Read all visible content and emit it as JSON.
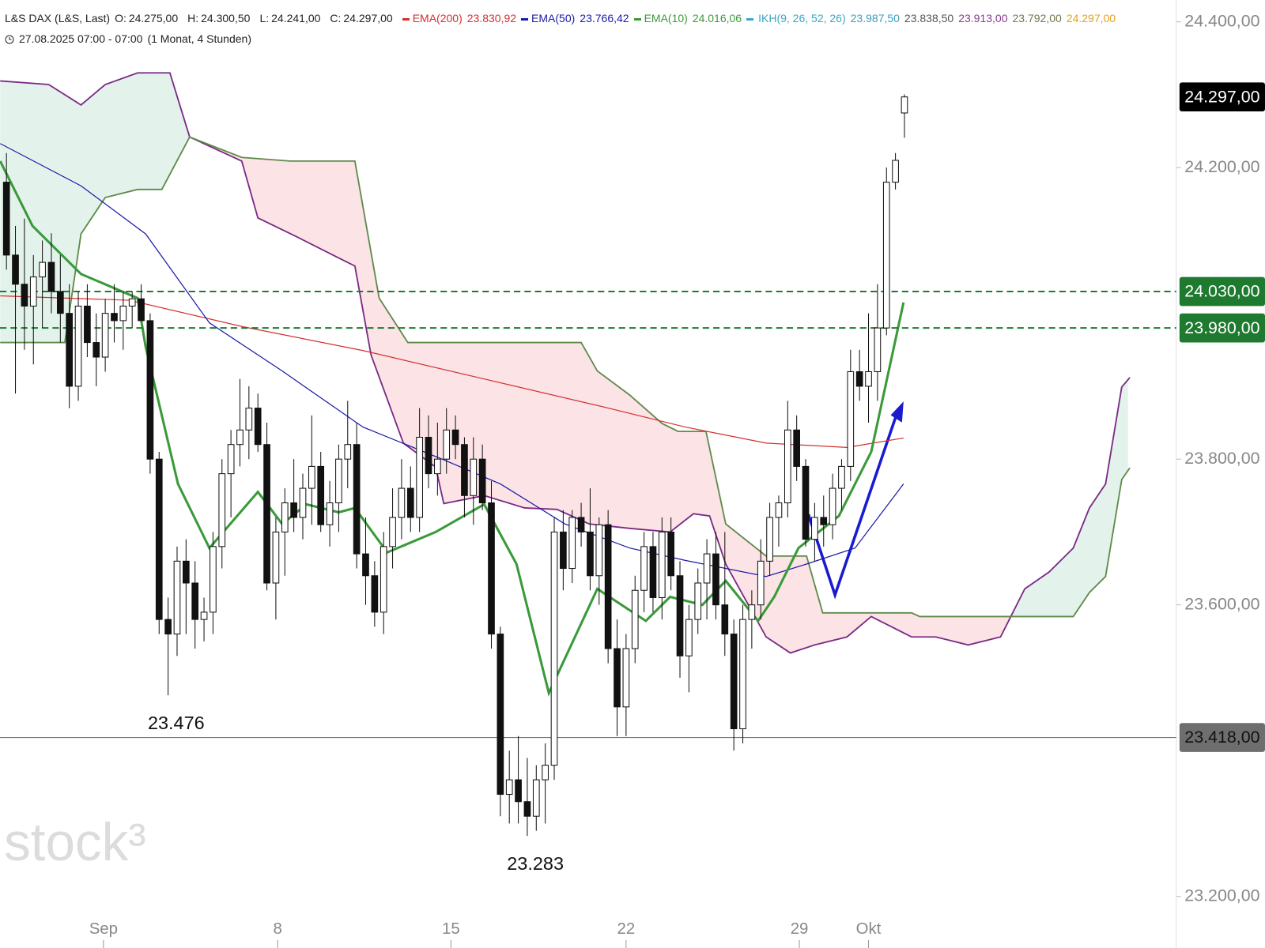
{
  "chart_data": {
    "type": "candlestick",
    "header": {
      "symbol": "L&S DAX (L&S, Last)",
      "ohlc": [
        {
          "label": "O:",
          "value": "24.275,00"
        },
        {
          "label": "H:",
          "value": "24.300,50"
        },
        {
          "label": "L:",
          "value": "24.241,00"
        },
        {
          "label": "C:",
          "value": "24.297,00"
        }
      ],
      "date": "27.08.2025 07:00 - 07:00",
      "interval": "(1 Monat, 4 Stunden)"
    },
    "x": [
      0,
      1,
      2,
      3,
      4,
      5,
      6,
      7,
      8,
      9,
      10,
      11,
      12,
      13,
      14,
      15,
      16,
      17,
      18,
      19,
      20,
      21,
      22,
      23,
      24,
      25,
      26,
      27,
      28,
      29,
      30,
      31,
      32,
      33,
      34,
      35,
      36,
      37,
      38,
      39,
      40,
      41,
      42,
      43,
      44,
      45,
      46,
      47,
      48,
      49,
      50,
      51,
      52,
      53,
      54,
      55,
      56,
      57,
      58,
      59,
      60,
      61,
      62,
      63,
      64,
      65,
      66,
      67,
      68,
      69,
      70,
      71,
      72,
      73,
      74,
      75,
      76,
      77,
      78,
      79,
      80,
      81,
      82,
      83,
      84,
      85,
      86,
      87,
      88,
      89,
      90,
      91,
      92,
      93,
      94,
      95,
      96,
      97,
      98,
      99,
      100
    ],
    "open": [
      24180,
      24080,
      24040,
      24010,
      24050,
      24070,
      24030,
      24000,
      23900,
      24010,
      23960,
      23940,
      24000,
      23990,
      24010,
      24020,
      23990,
      23800,
      23580,
      23560,
      23660,
      23630,
      23580,
      23590,
      23680,
      23780,
      23820,
      23840,
      23870,
      23820,
      23630,
      23700,
      23740,
      23720,
      23760,
      23790,
      23710,
      23740,
      23800,
      23820,
      23670,
      23640,
      23590,
      23680,
      23720,
      23760,
      23720,
      23830,
      23780,
      23800,
      23840,
      23820,
      23750,
      23800,
      23740,
      23560,
      23340,
      23360,
      23330,
      23310,
      23360,
      23380,
      23700,
      23650,
      23720,
      23700,
      23640,
      23710,
      23540,
      23460,
      23540,
      23620,
      23680,
      23610,
      23700,
      23640,
      23530,
      23580,
      23630,
      23670,
      23600,
      23560,
      23430,
      23580,
      23600,
      23660,
      23720,
      23740,
      23840,
      23790,
      23690,
      23720,
      23710,
      23760,
      23790,
      23920,
      23900,
      23920,
      23980,
      24180,
      24275
    ],
    "high": [
      24220,
      24120,
      24130,
      24080,
      24100,
      24110,
      24080,
      24040,
      24030,
      24040,
      24000,
      24020,
      24040,
      24030,
      24030,
      24040,
      24000,
      23810,
      23610,
      23680,
      23690,
      23660,
      23610,
      23700,
      23800,
      23840,
      23910,
      23900,
      23890,
      23850,
      23720,
      23760,
      23800,
      23780,
      23860,
      23810,
      23770,
      23820,
      23880,
      23850,
      23720,
      23660,
      23700,
      23760,
      23800,
      23790,
      23870,
      23860,
      23850,
      23870,
      23860,
      23830,
      23830,
      23820,
      23770,
      23570,
      23400,
      23420,
      23390,
      23380,
      23410,
      23720,
      23730,
      23730,
      23740,
      23760,
      23720,
      23730,
      23580,
      23560,
      23640,
      23700,
      23700,
      23720,
      23720,
      23660,
      23600,
      23650,
      23690,
      23700,
      23700,
      23580,
      23600,
      23620,
      23690,
      23740,
      23750,
      23880,
      23860,
      23800,
      23740,
      23750,
      23780,
      23800,
      23950,
      23950,
      24000,
      24040,
      24200,
      24220,
      24300.5
    ],
    "low": [
      24060,
      23890,
      23950,
      23930,
      23980,
      24000,
      23960,
      23870,
      23880,
      23940,
      23900,
      23920,
      23960,
      23950,
      23980,
      23990,
      23780,
      23560,
      23476,
      23530,
      23560,
      23540,
      23550,
      23560,
      23650,
      23720,
      23790,
      23800,
      23810,
      23620,
      23580,
      23640,
      23700,
      23690,
      23710,
      23700,
      23680,
      23700,
      23760,
      23650,
      23600,
      23570,
      23560,
      23650,
      23690,
      23700,
      23700,
      23760,
      23750,
      23780,
      23800,
      23720,
      23710,
      23730,
      23540,
      23310,
      23300,
      23300,
      23283,
      23290,
      23300,
      23360,
      23620,
      23630,
      23680,
      23620,
      23600,
      23520,
      23420,
      23420,
      23520,
      23590,
      23590,
      23580,
      23620,
      23500,
      23480,
      23560,
      23580,
      23580,
      23530,
      23400,
      23410,
      23540,
      23580,
      23640,
      23680,
      23720,
      23770,
      23680,
      23660,
      23680,
      23690,
      23730,
      23770,
      23880,
      23850,
      23880,
      23970,
      24170,
      24241
    ],
    "close": [
      24080,
      24040,
      24010,
      24050,
      24070,
      24030,
      24000,
      23900,
      24010,
      23960,
      23940,
      24000,
      23990,
      24010,
      24020,
      23990,
      23800,
      23580,
      23560,
      23660,
      23630,
      23580,
      23590,
      23680,
      23780,
      23820,
      23840,
      23870,
      23820,
      23630,
      23700,
      23740,
      23720,
      23760,
      23790,
      23710,
      23740,
      23800,
      23820,
      23670,
      23640,
      23590,
      23680,
      23720,
      23760,
      23720,
      23830,
      23780,
      23800,
      23840,
      23820,
      23750,
      23800,
      23740,
      23560,
      23340,
      23360,
      23330,
      23310,
      23360,
      23380,
      23700,
      23650,
      23720,
      23700,
      23640,
      23710,
      23540,
      23460,
      23540,
      23620,
      23680,
      23610,
      23700,
      23640,
      23530,
      23580,
      23630,
      23670,
      23600,
      23560,
      23430,
      23580,
      23600,
      23660,
      23720,
      23740,
      23840,
      23790,
      23690,
      23720,
      23710,
      23760,
      23790,
      23920,
      23900,
      23920,
      23980,
      24180,
      24210,
      24297
    ],
    "xlim": [
      -0.72,
      130
    ],
    "xticks": [
      {
        "value": 10.8,
        "label": "Sep"
      },
      {
        "value": 30.2,
        "label": "8"
      },
      {
        "value": 49.5,
        "label": "15"
      },
      {
        "value": 69,
        "label": "22"
      },
      {
        "value": 88.3,
        "label": "29"
      },
      {
        "value": 96,
        "label": "Okt"
      }
    ],
    "ylim": [
      23169,
      24430
    ],
    "yticks": [
      {
        "value": 24400,
        "label": "24.400,00"
      },
      {
        "value": 24200,
        "label": "24.200,00"
      },
      {
        "value": 23800,
        "label": "23.800,00"
      },
      {
        "value": 23600,
        "label": "23.600,00"
      },
      {
        "value": 23200,
        "label": "23.200,00"
      }
    ],
    "series": [
      {
        "name": "EMA(200)",
        "color": "#d32f2f",
        "legend_value": "23.830,92",
        "x": [
          -0.7,
          13.7,
          26.2,
          39.7,
          53.2,
          66.7,
          75.6,
          84.6,
          93.6,
          99.9
        ],
        "values": [
          24024,
          24018,
          23982,
          23949,
          23910,
          23871,
          23844,
          23822,
          23816,
          23829
        ]
      },
      {
        "name": "EMA(50)",
        "color": "#1a1aa8",
        "legend_value": "23.766,42",
        "x": [
          -0.7,
          8.3,
          15.5,
          22.6,
          30.7,
          39.7,
          48.7,
          55,
          62.2,
          69.4,
          75.6,
          84.6,
          89.1,
          94.5,
          99.9
        ],
        "values": [
          24233,
          24175,
          24109,
          23987,
          23921,
          23844,
          23799,
          23766,
          23711,
          23678,
          23661,
          23639,
          23656,
          23678,
          23766
        ]
      },
      {
        "name": "EMA(10)",
        "color": "#3a9a3a",
        "legend_value": "24.016,06",
        "x": [
          -0.7,
          2.9,
          8.3,
          14.6,
          15.5,
          19.1,
          22.6,
          28,
          30.7,
          33.4,
          37,
          38.8,
          42.4,
          47.8,
          53.2,
          56.8,
          60.4,
          65.8,
          71.2,
          73.9,
          77.5,
          80.1,
          83.7,
          85.5,
          88.2,
          92.7,
          96.3,
          99.9
        ],
        "values": [
          24209,
          24120,
          24054,
          24021,
          23954,
          23766,
          23678,
          23755,
          23711,
          23738,
          23727,
          23733,
          23672,
          23700,
          23738,
          23656,
          23479,
          23622,
          23578,
          23611,
          23600,
          23633,
          23578,
          23611,
          23678,
          23722,
          23810,
          24015
        ]
      }
    ],
    "ichimoku": {
      "name": "IKH(9, 26, 52, 26)",
      "color": "#3aa6c4",
      "legend_values": [
        {
          "text": "23.987,50",
          "color": "#3a9fc0"
        },
        {
          "text": "23.838,50",
          "color": "#555555"
        },
        {
          "text": "23.913,00",
          "color": "#8a3a8a"
        },
        {
          "text": "23.792,00",
          "color": "#6f7a4a"
        },
        {
          "text": "24.297,00",
          "color": "#e0a020"
        }
      ],
      "span_a": {
        "color": "#7b2a85",
        "x": [
          -0.7,
          4.7,
          8.3,
          11,
          14.6,
          18.2,
          20.4,
          26.2,
          28,
          32.5,
          37,
          38.8,
          40.6,
          44.2,
          47.8,
          48.7,
          53.2,
          57.7,
          61.3,
          64.9,
          69.4,
          73.9,
          76.5,
          78.3,
          80.1,
          84.6,
          87.3,
          90,
          93.6,
          96.3,
          100.8,
          103.5,
          107.1,
          110.7,
          113.4,
          116.1,
          118.8,
          120.6,
          122.4,
          124.2,
          125.1
        ],
        "values": [
          24319,
          24314,
          24286,
          24314,
          24330,
          24330,
          24242,
          24209,
          24131,
          24104,
          24076,
          24065,
          23943,
          23822,
          23789,
          23739,
          23750,
          23733,
          23731,
          23711,
          23705,
          23700,
          23725,
          23722,
          23656,
          23556,
          23534,
          23545,
          23556,
          23584,
          23556,
          23556,
          23545,
          23556,
          23622,
          23645,
          23678,
          23733,
          23766,
          23899,
          23912
        ]
      },
      "span_b": {
        "color": "#5f8a4a",
        "x": [
          -0.7,
          6.5,
          8.3,
          11,
          14.6,
          17.3,
          20.4,
          26.2,
          31.6,
          38.8,
          41.5,
          44.7,
          64,
          65.8,
          69.4,
          73,
          74.8,
          77.9,
          80.1,
          84.6,
          89.1,
          90.9,
          100.8,
          101.7,
          112.5,
          118.8,
          120.6,
          122.4,
          124.2,
          125.1
        ],
        "values": [
          23960,
          23960,
          24109,
          24159,
          24170,
          24170,
          24242,
          24214,
          24209,
          24209,
          24021,
          23960,
          23960,
          23921,
          23888,
          23849,
          23838,
          23838,
          23711,
          23667,
          23667,
          23589,
          23589,
          23584,
          23584,
          23584,
          23617,
          23639,
          23772,
          23788
        ]
      },
      "cloud_up_color": "#e3f3ec",
      "cloud_down_color": "#fbe3e6"
    },
    "levels": [
      {
        "value": 24030,
        "label": "24.030,00",
        "color": "#1e7a2f",
        "dashed": true
      },
      {
        "value": 23980,
        "label": "23.980,00",
        "color": "#1e7a2f",
        "dashed": true
      },
      {
        "value": 23418,
        "label": "23.418,00",
        "color": "#777777",
        "dashed": false
      }
    ],
    "price_tag": {
      "value": 24297,
      "label": "24.297,00"
    },
    "annotations": [
      {
        "label": "23.476",
        "x": 18,
        "value": 23476
      },
      {
        "label": "23.283",
        "x": 58,
        "value": 23283
      }
    ],
    "watermark": "stock³"
  }
}
